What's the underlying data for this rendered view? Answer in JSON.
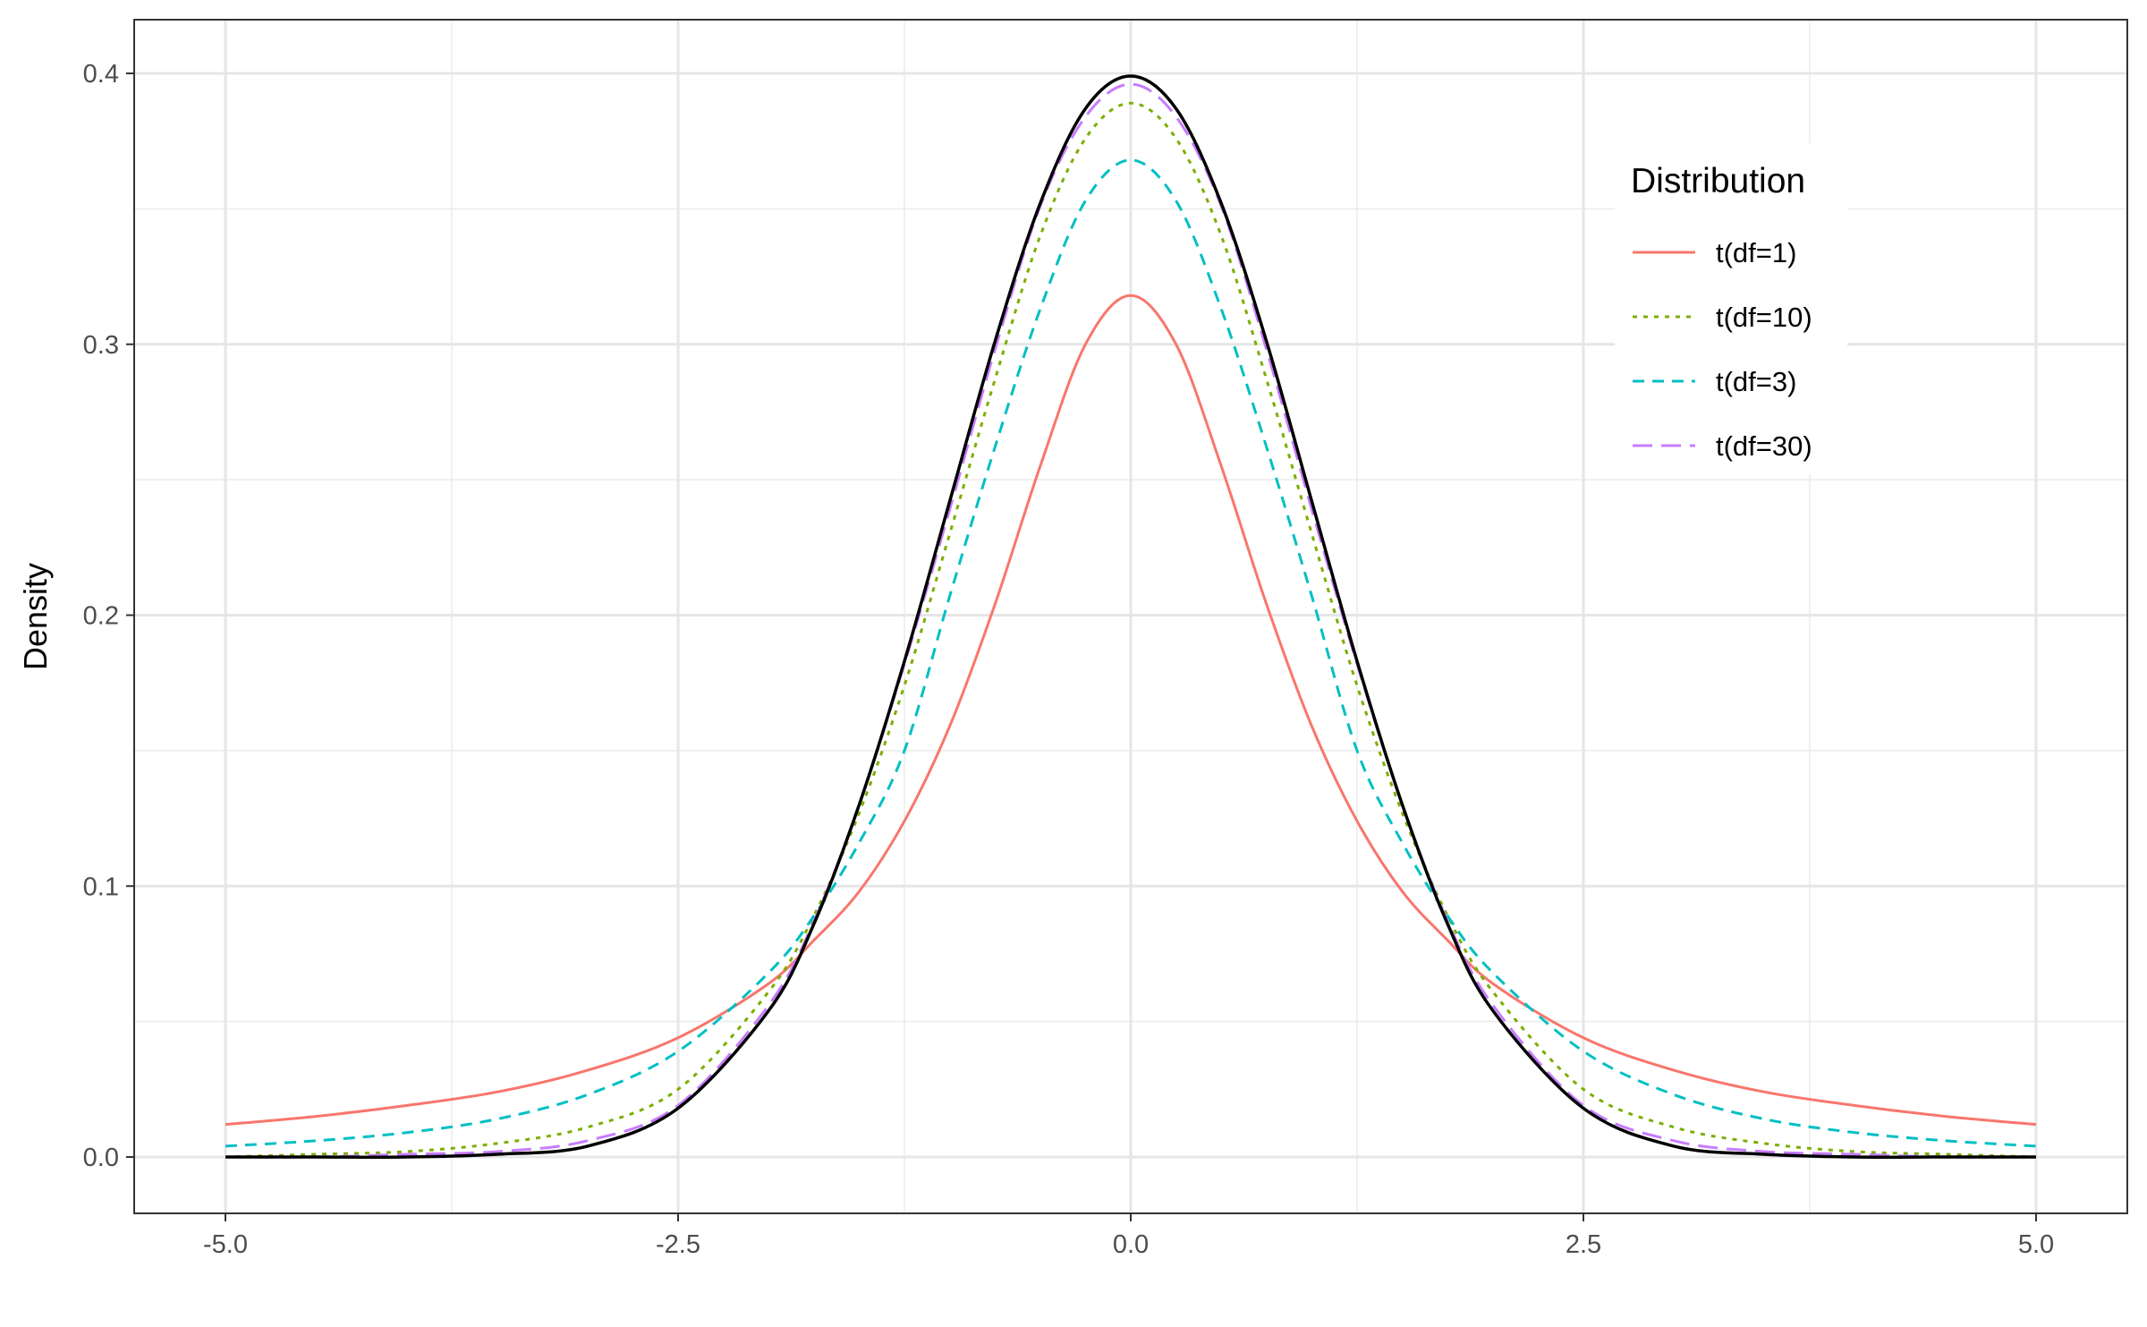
{
  "chart_data": {
    "type": "line",
    "title": "",
    "xlabel": "",
    "ylabel": "Density",
    "xlim": [
      -5.0,
      5.0
    ],
    "ylim": [
      0.0,
      0.4
    ],
    "x_ticks": [
      "-5.0",
      "-2.5",
      "0.0",
      "2.5",
      "5.0"
    ],
    "y_ticks": [
      "0.0",
      "0.1",
      "0.2",
      "0.3",
      "0.4"
    ],
    "grid": true,
    "legend": {
      "title": "Distribution",
      "placement": "top-right",
      "entries": [
        {
          "label": "t(df=1)",
          "color": "#F8766D",
          "dash": "solid"
        },
        {
          "label": "t(df=10)",
          "color": "#7CAE00",
          "dash": "dotted"
        },
        {
          "label": "t(df=3)",
          "color": "#00BFC4",
          "dash": "dashed"
        },
        {
          "label": "t(df=30)",
          "color": "#C77CFF",
          "dash": "longdash"
        }
      ]
    },
    "series": [
      {
        "name": "t(df=1)",
        "color": "#F8766D",
        "dash": "solid",
        "x": [
          -5,
          -4.5,
          -4,
          -3.5,
          -3,
          -2.5,
          -2,
          -1.75,
          -1.5,
          -1.25,
          -1,
          -0.75,
          -0.5,
          -0.25,
          0,
          0.25,
          0.5,
          0.75,
          1,
          1.25,
          1.5,
          1.75,
          2,
          2.5,
          3,
          3.5,
          4,
          4.5,
          5
        ],
        "y": [
          0.012,
          0.015,
          0.019,
          0.024,
          0.032,
          0.044,
          0.064,
          0.08,
          0.098,
          0.124,
          0.159,
          0.204,
          0.255,
          0.3,
          0.318,
          0.3,
          0.255,
          0.204,
          0.159,
          0.124,
          0.098,
          0.08,
          0.064,
          0.044,
          0.032,
          0.024,
          0.019,
          0.015,
          0.012
        ]
      },
      {
        "name": "t(df=10)",
        "color": "#7CAE00",
        "dash": "dotted",
        "x": [
          -5,
          -4.5,
          -4,
          -3.5,
          -3,
          -2.5,
          -2,
          -1.75,
          -1.5,
          -1.25,
          -1,
          -0.75,
          -0.5,
          -0.25,
          0,
          0.25,
          0.5,
          0.75,
          1,
          1.25,
          1.5,
          1.75,
          2,
          2.5,
          3,
          3.5,
          4,
          4.5,
          5
        ],
        "y": [
          0.0,
          0.001,
          0.002,
          0.005,
          0.011,
          0.025,
          0.061,
          0.089,
          0.127,
          0.174,
          0.23,
          0.287,
          0.34,
          0.376,
          0.389,
          0.376,
          0.34,
          0.287,
          0.23,
          0.174,
          0.127,
          0.089,
          0.061,
          0.025,
          0.011,
          0.005,
          0.002,
          0.001,
          0.0
        ]
      },
      {
        "name": "t(df=3)",
        "color": "#00BFC4",
        "dash": "dashed",
        "x": [
          -5,
          -4.5,
          -4,
          -3.5,
          -3,
          -2.5,
          -2,
          -1.75,
          -1.5,
          -1.25,
          -1,
          -0.75,
          -0.5,
          -0.25,
          0,
          0.25,
          0.5,
          0.75,
          1,
          1.25,
          1.5,
          1.75,
          2,
          2.5,
          3,
          3.5,
          4,
          4.5,
          5
        ],
        "y": [
          0.004,
          0.006,
          0.009,
          0.014,
          0.023,
          0.039,
          0.068,
          0.089,
          0.116,
          0.15,
          0.207,
          0.262,
          0.313,
          0.353,
          0.368,
          0.353,
          0.313,
          0.262,
          0.207,
          0.15,
          0.116,
          0.089,
          0.068,
          0.039,
          0.023,
          0.014,
          0.009,
          0.006,
          0.004
        ]
      },
      {
        "name": "t(df=30)",
        "color": "#C77CFF",
        "dash": "longdash",
        "x": [
          -5,
          -4.5,
          -4,
          -3.5,
          -3,
          -2.5,
          -2,
          -1.75,
          -1.5,
          -1.25,
          -1,
          -0.75,
          -0.5,
          -0.25,
          0,
          0.25,
          0.5,
          0.75,
          1,
          1.25,
          1.5,
          1.75,
          2,
          2.5,
          3,
          3.5,
          4,
          4.5,
          5
        ],
        "y": [
          0.0,
          0.0,
          0.001,
          0.002,
          0.006,
          0.019,
          0.056,
          0.087,
          0.13,
          0.182,
          0.239,
          0.298,
          0.351,
          0.384,
          0.396,
          0.384,
          0.351,
          0.298,
          0.239,
          0.182,
          0.13,
          0.087,
          0.056,
          0.019,
          0.006,
          0.002,
          0.001,
          0.0,
          0.0
        ]
      },
      {
        "color": "#000000",
        "dash": "solid",
        "x": [
          -5,
          -4.5,
          -4,
          -3.5,
          -3,
          -2.5,
          -2,
          -1.75,
          -1.5,
          -1.25,
          -1,
          -0.75,
          -0.5,
          -0.25,
          0,
          0.25,
          0.5,
          0.75,
          1,
          1.25,
          1.5,
          1.75,
          2,
          2.5,
          3,
          3.5,
          4,
          4.5,
          5
        ],
        "y": [
          0.0,
          0.0,
          0.0,
          0.001,
          0.004,
          0.018,
          0.054,
          0.086,
          0.13,
          0.183,
          0.242,
          0.301,
          0.352,
          0.387,
          0.399,
          0.387,
          0.352,
          0.301,
          0.242,
          0.183,
          0.13,
          0.086,
          0.054,
          0.018,
          0.004,
          0.001,
          0.0,
          0.0,
          0.0
        ]
      }
    ]
  }
}
